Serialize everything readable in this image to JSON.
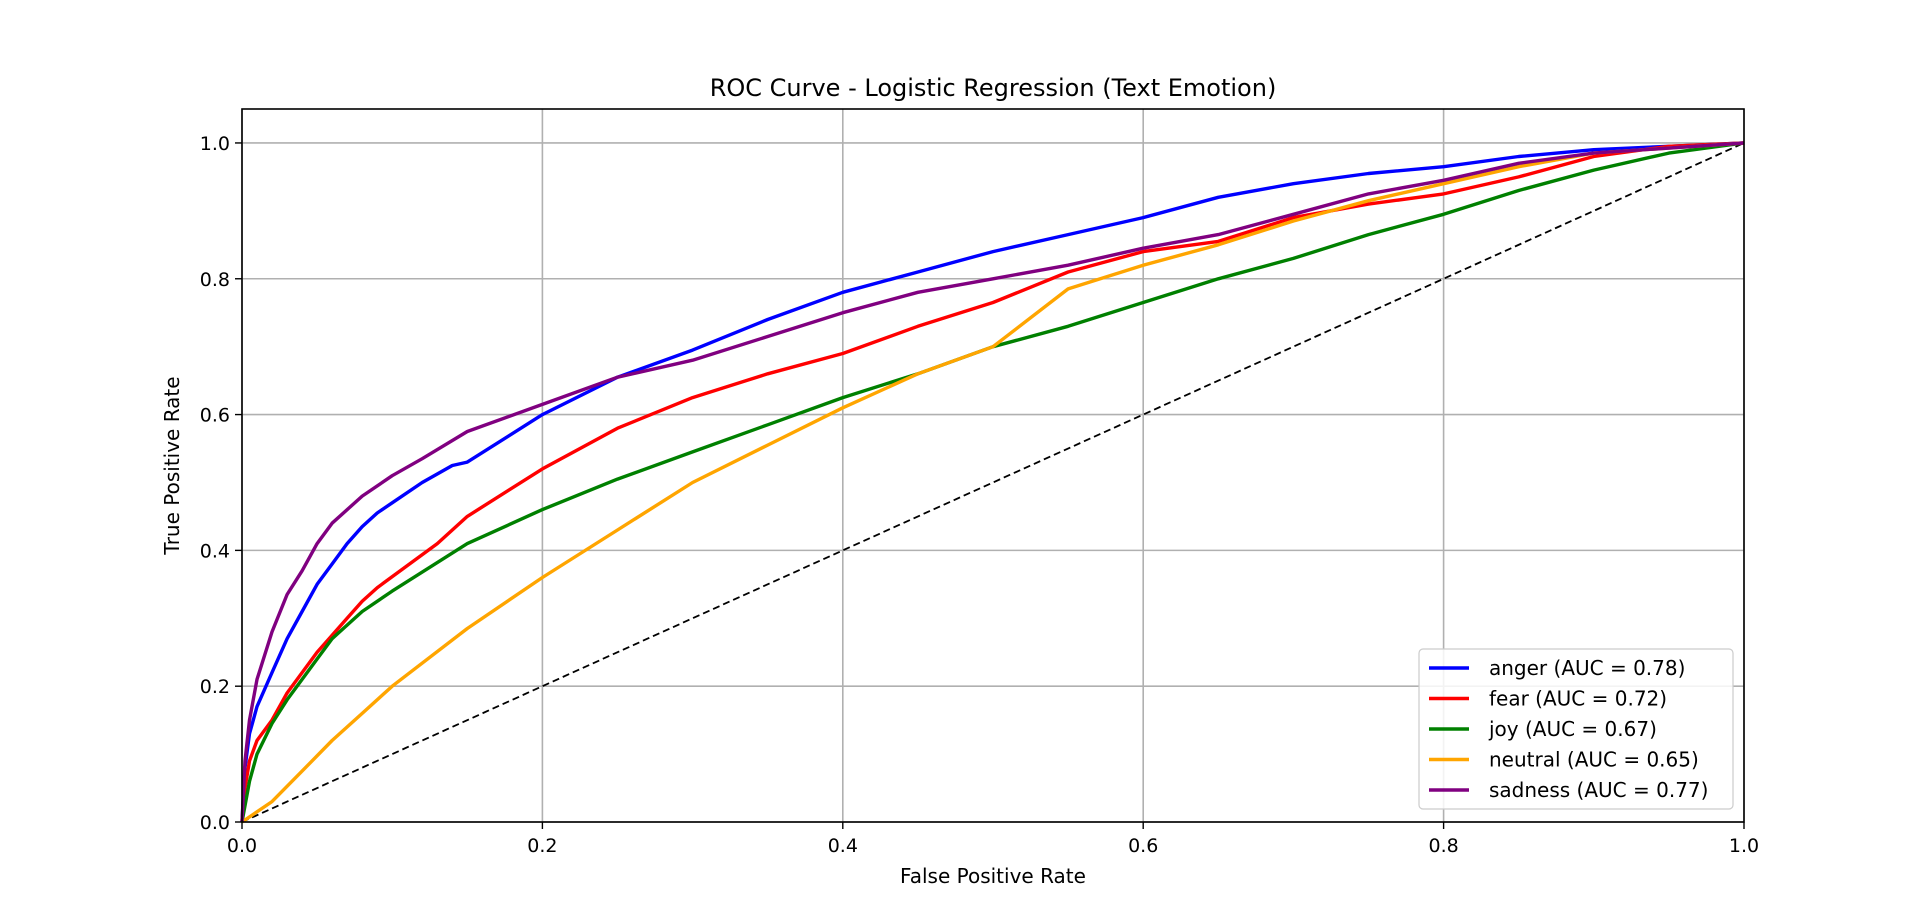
{
  "chart_data": {
    "type": "line",
    "title": "ROC Curve - Logistic Regression (Text Emotion)",
    "xlabel": "False Positive Rate",
    "ylabel": "True Positive Rate",
    "xlim": [
      0.0,
      1.0
    ],
    "ylim": [
      0.0,
      1.05
    ],
    "xticks": [
      "0.0",
      "0.2",
      "0.4",
      "0.6",
      "0.8",
      "1.0"
    ],
    "yticks": [
      "0.0",
      "0.2",
      "0.4",
      "0.6",
      "0.8",
      "1.0"
    ],
    "grid": true,
    "legend_position": "lower-right",
    "reference_line": {
      "style": "dashed",
      "color": "#000000",
      "points": [
        [
          0,
          0
        ],
        [
          1,
          1
        ]
      ]
    },
    "series": [
      {
        "name": "anger (AUC = 0.78)",
        "color": "#0000ff",
        "points": [
          [
            0,
            0
          ],
          [
            0.002,
            0.08
          ],
          [
            0.005,
            0.13
          ],
          [
            0.01,
            0.17
          ],
          [
            0.02,
            0.22
          ],
          [
            0.03,
            0.27
          ],
          [
            0.04,
            0.31
          ],
          [
            0.05,
            0.35
          ],
          [
            0.06,
            0.38
          ],
          [
            0.07,
            0.41
          ],
          [
            0.08,
            0.435
          ],
          [
            0.09,
            0.455
          ],
          [
            0.1,
            0.47
          ],
          [
            0.12,
            0.5
          ],
          [
            0.14,
            0.525
          ],
          [
            0.15,
            0.53
          ],
          [
            0.2,
            0.6
          ],
          [
            0.25,
            0.655
          ],
          [
            0.3,
            0.695
          ],
          [
            0.35,
            0.74
          ],
          [
            0.4,
            0.78
          ],
          [
            0.45,
            0.81
          ],
          [
            0.5,
            0.84
          ],
          [
            0.55,
            0.865
          ],
          [
            0.6,
            0.89
          ],
          [
            0.65,
            0.92
          ],
          [
            0.7,
            0.94
          ],
          [
            0.75,
            0.955
          ],
          [
            0.8,
            0.965
          ],
          [
            0.85,
            0.98
          ],
          [
            0.9,
            0.99
          ],
          [
            0.95,
            0.995
          ],
          [
            1,
            1
          ]
        ]
      },
      {
        "name": "fear (AUC = 0.72)",
        "color": "#ff0000",
        "points": [
          [
            0,
            0
          ],
          [
            0.002,
            0.05
          ],
          [
            0.005,
            0.09
          ],
          [
            0.01,
            0.12
          ],
          [
            0.02,
            0.15
          ],
          [
            0.03,
            0.19
          ],
          [
            0.04,
            0.22
          ],
          [
            0.05,
            0.25
          ],
          [
            0.06,
            0.275
          ],
          [
            0.07,
            0.3
          ],
          [
            0.08,
            0.325
          ],
          [
            0.09,
            0.345
          ],
          [
            0.13,
            0.41
          ],
          [
            0.15,
            0.45
          ],
          [
            0.2,
            0.52
          ],
          [
            0.25,
            0.58
          ],
          [
            0.3,
            0.625
          ],
          [
            0.35,
            0.66
          ],
          [
            0.4,
            0.69
          ],
          [
            0.45,
            0.73
          ],
          [
            0.5,
            0.765
          ],
          [
            0.55,
            0.81
          ],
          [
            0.6,
            0.84
          ],
          [
            0.65,
            0.855
          ],
          [
            0.7,
            0.89
          ],
          [
            0.75,
            0.91
          ],
          [
            0.8,
            0.925
          ],
          [
            0.85,
            0.95
          ],
          [
            0.9,
            0.98
          ],
          [
            0.95,
            0.995
          ],
          [
            1,
            1
          ]
        ]
      },
      {
        "name": "joy (AUC = 0.67)",
        "color": "#008000",
        "points": [
          [
            0,
            0
          ],
          [
            0.005,
            0.06
          ],
          [
            0.01,
            0.1
          ],
          [
            0.02,
            0.145
          ],
          [
            0.03,
            0.18
          ],
          [
            0.04,
            0.21
          ],
          [
            0.05,
            0.24
          ],
          [
            0.06,
            0.27
          ],
          [
            0.07,
            0.29
          ],
          [
            0.08,
            0.31
          ],
          [
            0.1,
            0.34
          ],
          [
            0.15,
            0.41
          ],
          [
            0.2,
            0.46
          ],
          [
            0.25,
            0.505
          ],
          [
            0.3,
            0.545
          ],
          [
            0.35,
            0.585
          ],
          [
            0.4,
            0.625
          ],
          [
            0.45,
            0.66
          ],
          [
            0.5,
            0.7
          ],
          [
            0.55,
            0.73
          ],
          [
            0.6,
            0.765
          ],
          [
            0.65,
            0.8
          ],
          [
            0.7,
            0.83
          ],
          [
            0.75,
            0.865
          ],
          [
            0.8,
            0.895
          ],
          [
            0.85,
            0.93
          ],
          [
            0.9,
            0.96
          ],
          [
            0.95,
            0.985
          ],
          [
            1,
            1
          ]
        ]
      },
      {
        "name": "neutral (AUC = 0.65)",
        "color": "#ffa500",
        "points": [
          [
            0,
            0
          ],
          [
            0.02,
            0.03
          ],
          [
            0.04,
            0.075
          ],
          [
            0.06,
            0.12
          ],
          [
            0.08,
            0.16
          ],
          [
            0.1,
            0.2
          ],
          [
            0.15,
            0.285
          ],
          [
            0.2,
            0.36
          ],
          [
            0.25,
            0.43
          ],
          [
            0.3,
            0.5
          ],
          [
            0.35,
            0.555
          ],
          [
            0.4,
            0.61
          ],
          [
            0.45,
            0.66
          ],
          [
            0.5,
            0.7
          ],
          [
            0.55,
            0.785
          ],
          [
            0.6,
            0.82
          ],
          [
            0.65,
            0.85
          ],
          [
            0.7,
            0.885
          ],
          [
            0.75,
            0.915
          ],
          [
            0.8,
            0.94
          ],
          [
            0.85,
            0.965
          ],
          [
            0.9,
            0.985
          ],
          [
            1,
            1
          ]
        ]
      },
      {
        "name": "sadness (AUC = 0.77)",
        "color": "#800080",
        "points": [
          [
            0,
            0
          ],
          [
            0.002,
            0.09
          ],
          [
            0.005,
            0.15
          ],
          [
            0.01,
            0.21
          ],
          [
            0.02,
            0.28
          ],
          [
            0.03,
            0.335
          ],
          [
            0.04,
            0.37
          ],
          [
            0.05,
            0.41
          ],
          [
            0.06,
            0.44
          ],
          [
            0.08,
            0.48
          ],
          [
            0.1,
            0.51
          ],
          [
            0.12,
            0.535
          ],
          [
            0.15,
            0.575
          ],
          [
            0.2,
            0.615
          ],
          [
            0.25,
            0.655
          ],
          [
            0.3,
            0.68
          ],
          [
            0.35,
            0.715
          ],
          [
            0.4,
            0.75
          ],
          [
            0.45,
            0.78
          ],
          [
            0.5,
            0.8
          ],
          [
            0.55,
            0.82
          ],
          [
            0.6,
            0.845
          ],
          [
            0.65,
            0.865
          ],
          [
            0.7,
            0.895
          ],
          [
            0.75,
            0.925
          ],
          [
            0.8,
            0.945
          ],
          [
            0.85,
            0.97
          ],
          [
            0.9,
            0.985
          ],
          [
            1,
            1
          ]
        ]
      }
    ]
  }
}
